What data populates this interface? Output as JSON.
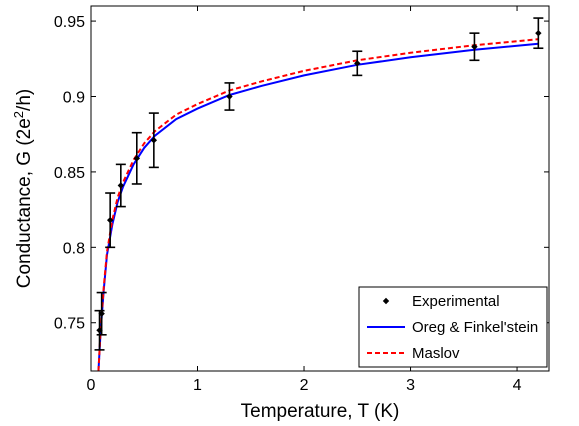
{
  "chart_data": {
    "type": "line",
    "xlabel": "Temperature, T (K)",
    "ylabel": "Conductance, G (2e²/h)",
    "ylabel_parts": {
      "pre": "Conductance, G (2e",
      "sup": "2",
      "post": "/h)"
    },
    "xlim": [
      0,
      4.3
    ],
    "ylim": [
      0.718,
      0.96
    ],
    "xticks": [
      0,
      1,
      2,
      3,
      4
    ],
    "yticks": [
      0.75,
      0.8,
      0.85,
      0.9,
      0.95
    ],
    "xtick_labels": [
      "0",
      "1",
      "2",
      "3",
      "4"
    ],
    "ytick_labels": [
      "0.75",
      "0.8",
      "0.85",
      "0.9",
      "0.95"
    ],
    "grid": false,
    "legend_position": "bottom-right",
    "series": [
      {
        "name": "Experimental",
        "kind": "points",
        "color": "#000000",
        "points": [
          {
            "x": 0.08,
            "y": 0.745,
            "err": 0.013
          },
          {
            "x": 0.1,
            "y": 0.756,
            "err": 0.014
          },
          {
            "x": 0.18,
            "y": 0.818,
            "err": 0.018
          },
          {
            "x": 0.28,
            "y": 0.841,
            "err": 0.014
          },
          {
            "x": 0.43,
            "y": 0.859,
            "err": 0.017
          },
          {
            "x": 0.59,
            "y": 0.871,
            "err": 0.018
          },
          {
            "x": 1.3,
            "y": 0.9,
            "err": 0.009
          },
          {
            "x": 2.5,
            "y": 0.922,
            "err": 0.008
          },
          {
            "x": 3.6,
            "y": 0.933,
            "err": 0.009
          },
          {
            "x": 4.2,
            "y": 0.942,
            "err": 0.01
          }
        ]
      },
      {
        "name": "Oreg & Finkel'stein",
        "kind": "line",
        "color": "#0000ff",
        "style": "solid",
        "x": [
          0.07,
          0.09,
          0.12,
          0.15,
          0.2,
          0.25,
          0.3,
          0.4,
          0.5,
          0.6,
          0.8,
          1.0,
          1.3,
          1.6,
          2.0,
          2.5,
          3.0,
          3.6,
          4.2
        ],
        "y": [
          0.718,
          0.744,
          0.772,
          0.795,
          0.815,
          0.83,
          0.84,
          0.855,
          0.866,
          0.874,
          0.885,
          0.892,
          0.901,
          0.907,
          0.914,
          0.921,
          0.926,
          0.931,
          0.935
        ]
      },
      {
        "name": "Maslov",
        "kind": "line",
        "color": "#ff0000",
        "style": "dashed",
        "x": [
          0.07,
          0.09,
          0.12,
          0.15,
          0.2,
          0.25,
          0.3,
          0.4,
          0.5,
          0.6,
          0.8,
          1.0,
          1.3,
          1.6,
          2.0,
          2.5,
          3.0,
          3.6,
          4.2
        ],
        "y": [
          0.718,
          0.745,
          0.774,
          0.797,
          0.818,
          0.833,
          0.843,
          0.858,
          0.869,
          0.877,
          0.888,
          0.895,
          0.904,
          0.91,
          0.917,
          0.924,
          0.929,
          0.934,
          0.938
        ]
      }
    ]
  }
}
